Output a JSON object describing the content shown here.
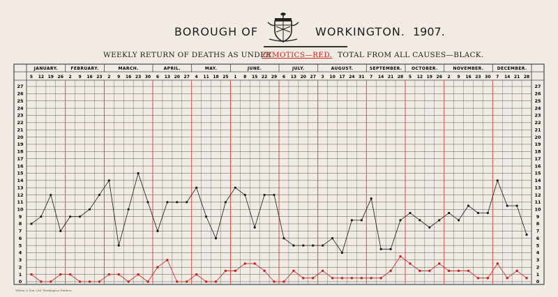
{
  "title": {
    "left": "BOROUGH OF",
    "right": "WORKINGTON.",
    "year": "1907.",
    "crest_icon": "borough-crest-icon"
  },
  "subtitle": {
    "left": "WEEKLY RETURN OF DEATHS AS UNDER",
    "zymotics": "ZYMOTICS—RED.",
    "total": "TOTAL FROM ALL CAUSES—BLACK."
  },
  "printer": "Wilson & Son, Ltd. Workington Printers",
  "colors": {
    "paper": "#f1ebe3",
    "grid": "#3a4b55",
    "month_line": "#d4443c",
    "total_series": "#1a1a1a",
    "zymotic_series": "#c8231e"
  },
  "chart_data": {
    "type": "line",
    "title": "Weekly Return of Deaths — Borough of Workington 1907",
    "xlabel": "",
    "ylabel": "",
    "ylim": [
      0,
      27
    ],
    "yticks": [
      0,
      1,
      2,
      3,
      4,
      5,
      6,
      7,
      8,
      9,
      10,
      11,
      12,
      13,
      14,
      15,
      16,
      17,
      18,
      19,
      20,
      21,
      22,
      23,
      24,
      25,
      26,
      27
    ],
    "grid": true,
    "months": [
      {
        "name": "JANUARY.",
        "days": [
          "5",
          "12",
          "19",
          "26"
        ]
      },
      {
        "name": "FEBRUARY.",
        "days": [
          "2",
          "9",
          "16",
          "23"
        ]
      },
      {
        "name": "MARCH.",
        "days": [
          "2",
          "9",
          "16",
          "23",
          "30"
        ]
      },
      {
        "name": "APRIL.",
        "days": [
          "6",
          "13",
          "20",
          "27"
        ]
      },
      {
        "name": "MAY.",
        "days": [
          "4",
          "11",
          "18",
          "25"
        ]
      },
      {
        "name": "JUNE.",
        "days": [
          "1",
          "8",
          "15",
          "22",
          "29"
        ]
      },
      {
        "name": "JULY.",
        "days": [
          "6",
          "13",
          "20",
          "27"
        ]
      },
      {
        "name": "AUGUST.",
        "days": [
          "3",
          "10",
          "17",
          "24",
          "31"
        ]
      },
      {
        "name": "SEPTEMBER.",
        "days": [
          "7",
          "14",
          "21",
          "28"
        ]
      },
      {
        "name": "OCTOBER.",
        "days": [
          "5",
          "12",
          "19",
          "26"
        ]
      },
      {
        "name": "NOVEMBER.",
        "days": [
          "2",
          "9",
          "16",
          "23",
          "30"
        ]
      },
      {
        "name": "DECEMBER.",
        "days": [
          "7",
          "14",
          "21",
          "28"
        ]
      }
    ],
    "series": [
      {
        "name": "TOTAL FROM ALL CAUSES—BLACK.",
        "values": [
          8,
          9,
          12,
          7,
          9,
          9,
          10,
          12,
          14,
          5,
          10,
          15,
          11,
          7,
          11,
          11,
          11,
          13,
          9,
          6,
          11,
          13,
          12,
          7.5,
          12,
          12,
          6,
          5,
          5,
          5,
          5,
          6,
          4,
          8.5,
          8.5,
          11.5,
          4.5,
          4.5,
          8.5,
          9.5,
          8.5,
          7.5,
          8.5,
          9.5,
          8.5,
          10.5,
          9.5,
          9.5,
          14,
          10.5,
          10.5,
          6.5
        ]
      },
      {
        "name": "ZYMOTICS—RED.",
        "values": [
          1,
          0,
          0,
          1,
          1,
          0,
          0,
          0,
          1,
          1,
          0,
          1,
          0,
          2,
          3,
          0,
          0,
          1,
          0,
          0,
          1.5,
          1.5,
          2.5,
          2.5,
          1.5,
          0,
          0,
          1.5,
          0.5,
          0.5,
          1.5,
          0.5,
          0.5,
          0.5,
          0.5,
          0.5,
          0.5,
          1.5,
          3.5,
          2.5,
          1.5,
          1.5,
          2.5,
          1.5,
          1.5,
          1.5,
          0.5,
          0.5,
          2.5,
          0.5,
          1.5,
          0.5
        ]
      }
    ]
  }
}
